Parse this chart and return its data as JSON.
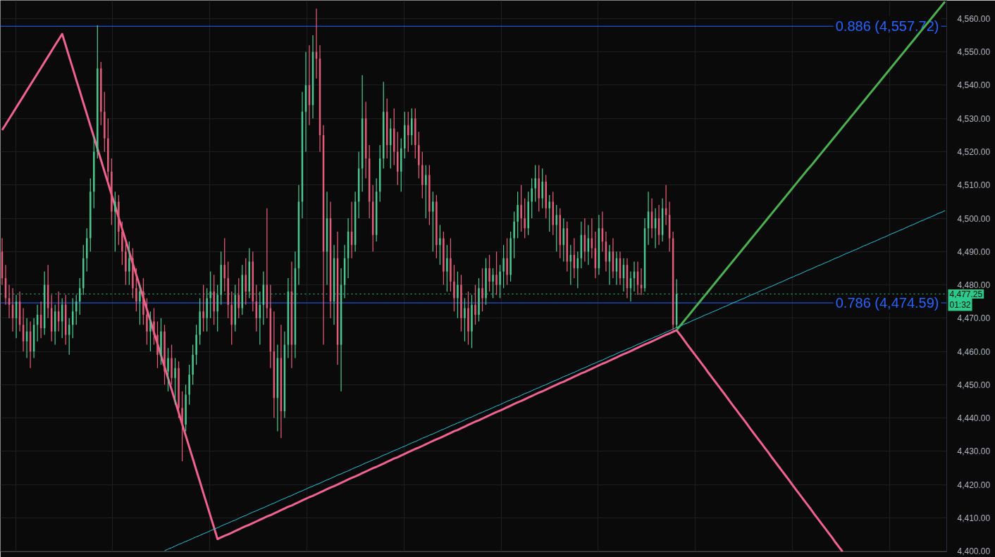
{
  "chart_data": {
    "type": "candlestick",
    "categories": [
      null,
      null,
      null,
      null,
      null,
      null,
      null,
      null,
      null,
      null,
      null,
      null,
      null,
      null,
      null,
      null,
      null,
      null,
      null,
      null,
      null,
      null,
      null,
      null,
      null,
      null,
      null,
      null,
      null,
      null,
      null,
      null,
      null,
      null,
      null,
      null,
      null,
      null,
      null,
      null,
      null,
      null,
      null,
      null,
      null,
      null,
      null,
      null,
      null,
      null,
      null,
      null,
      null,
      null,
      null,
      null,
      null,
      null,
      null,
      null,
      null,
      null,
      null,
      null,
      null,
      null,
      null,
      null,
      null,
      null,
      null,
      null,
      null,
      null,
      null,
      null,
      null,
      null,
      null,
      null,
      null,
      null,
      null,
      null,
      null,
      null,
      null,
      null,
      null,
      null,
      null,
      null,
      null,
      null,
      null,
      null,
      null,
      null,
      null,
      null,
      null,
      null,
      null,
      null,
      null,
      null,
      null,
      null,
      null,
      null,
      null,
      null,
      null,
      null,
      null,
      null,
      null,
      null,
      null,
      null,
      null,
      null,
      null,
      null,
      null,
      null,
      null,
      null,
      null,
      null,
      null,
      null,
      null,
      null,
      null,
      null,
      null,
      null,
      null,
      null,
      null,
      null,
      null,
      null,
      null,
      null,
      null,
      null,
      null,
      null,
      null,
      null,
      null,
      null,
      null,
      null,
      null,
      null,
      null,
      null,
      null,
      null,
      null,
      null,
      null,
      null,
      null,
      null,
      null,
      null,
      null,
      null,
      null,
      null,
      null,
      null,
      null,
      null,
      null,
      null,
      null,
      null,
      null,
      null,
      null,
      null,
      null,
      null,
      null,
      null,
      null,
      null,
      null,
      null,
      null,
      null,
      null,
      null,
      null,
      null,
      null,
      null,
      null,
      null,
      null,
      null,
      null,
      null,
      null,
      null,
      null,
      null,
      null,
      null,
      null,
      null,
      null,
      null,
      null,
      null,
      null,
      null,
      null,
      null,
      null,
      null,
      null,
      null,
      null,
      null,
      null,
      null,
      null,
      null,
      null,
      null,
      null,
      null,
      null,
      null,
      null,
      null,
      null,
      null,
      null,
      null,
      null,
      null,
      null,
      null,
      null,
      null,
      null,
      null,
      null,
      null,
      null,
      null,
      null,
      null,
      null,
      null,
      null,
      null,
      null,
      null,
      null,
      null
    ],
    "ohlc": [
      [
        4490,
        4494,
        4480,
        4482
      ],
      [
        4482,
        4486,
        4474,
        4476
      ],
      [
        4476,
        4480,
        4470,
        4474
      ],
      [
        4474,
        4479,
        4466,
        4470
      ],
      [
        4470,
        4477,
        4464,
        4475
      ],
      [
        4475,
        4478,
        4466,
        4468
      ],
      [
        4468,
        4473,
        4460,
        4463
      ],
      [
        4463,
        4470,
        4458,
        4466
      ],
      [
        4466,
        4469,
        4455,
        4460
      ],
      [
        4460,
        4470,
        4458,
        4468
      ],
      [
        4468,
        4474,
        4463,
        4471
      ],
      [
        4471,
        4475,
        4464,
        4467
      ],
      [
        4467,
        4484,
        4465,
        4480
      ],
      [
        4480,
        4486,
        4470,
        4473
      ],
      [
        4473,
        4477,
        4463,
        4466
      ],
      [
        4466,
        4474,
        4462,
        4472
      ],
      [
        4472,
        4478,
        4466,
        4469
      ],
      [
        4469,
        4476,
        4464,
        4474
      ],
      [
        4474,
        4477,
        4462,
        4465
      ],
      [
        4465,
        4470,
        4459,
        4468
      ],
      [
        4468,
        4476,
        4464,
        4472
      ],
      [
        4472,
        4477,
        4468,
        4475
      ],
      [
        4475,
        4482,
        4471,
        4479
      ],
      [
        4479,
        4492,
        4477,
        4488
      ],
      [
        4488,
        4497,
        4484,
        4494
      ],
      [
        4494,
        4512,
        4490,
        4508
      ],
      [
        4508,
        4525,
        4503,
        4520
      ],
      [
        4520,
        4558,
        4518,
        4545
      ],
      [
        4545,
        4547,
        4528,
        4532
      ],
      [
        4532,
        4538,
        4520,
        4524
      ],
      [
        4524,
        4530,
        4510,
        4514
      ],
      [
        4514,
        4518,
        4498,
        4502
      ],
      [
        4502,
        4508,
        4490,
        4505
      ],
      [
        4505,
        4507,
        4492,
        4496
      ],
      [
        4496,
        4499,
        4486,
        4490
      ],
      [
        4490,
        4494,
        4480,
        4484
      ],
      [
        4484,
        4493,
        4480,
        4488
      ],
      [
        4488,
        4491,
        4476,
        4479
      ],
      [
        4479,
        4485,
        4472,
        4475
      ],
      [
        4475,
        4480,
        4468,
        4478
      ],
      [
        4478,
        4482,
        4468,
        4471
      ],
      [
        4471,
        4476,
        4462,
        4466
      ],
      [
        4466,
        4472,
        4460,
        4469
      ],
      [
        4469,
        4473,
        4462,
        4465
      ],
      [
        4465,
        4469,
        4455,
        4459
      ],
      [
        4459,
        4470,
        4456,
        4466
      ],
      [
        4466,
        4468,
        4450,
        4454
      ],
      [
        4454,
        4461,
        4448,
        4458
      ],
      [
        4458,
        4462,
        4450,
        4452
      ],
      [
        4452,
        4458,
        4444,
        4455
      ],
      [
        4455,
        4457,
        4440,
        4443
      ],
      [
        4443,
        4448,
        4427,
        4438
      ],
      [
        4438,
        4450,
        4436,
        4447
      ],
      [
        4447,
        4456,
        4444,
        4453
      ],
      [
        4453,
        4462,
        4450,
        4459
      ],
      [
        4459,
        4468,
        4456,
        4465
      ],
      [
        4465,
        4476,
        4462,
        4472
      ],
      [
        4472,
        4480,
        4466,
        4470
      ],
      [
        4470,
        4479,
        4466,
        4476
      ],
      [
        4476,
        4484,
        4470,
        4478
      ],
      [
        4478,
        4483,
        4468,
        4472
      ],
      [
        4472,
        4480,
        4466,
        4477
      ],
      [
        4477,
        4490,
        4474,
        4486
      ],
      [
        4486,
        4494,
        4478,
        4482
      ],
      [
        4482,
        4487,
        4470,
        4474
      ],
      [
        4474,
        4478,
        4462,
        4468
      ],
      [
        4468,
        4480,
        4466,
        4477
      ],
      [
        4477,
        4482,
        4470,
        4473
      ],
      [
        4473,
        4486,
        4471,
        4483
      ],
      [
        4483,
        4488,
        4474,
        4478
      ],
      [
        4478,
        4491,
        4476,
        4487
      ],
      [
        4487,
        4490,
        4472,
        4475
      ],
      [
        4475,
        4480,
        4466,
        4470
      ],
      [
        4470,
        4478,
        4462,
        4474
      ],
      [
        4474,
        4484,
        4468,
        4480
      ],
      [
        4480,
        4503,
        4470,
        4473
      ],
      [
        4473,
        4480,
        4455,
        4460
      ],
      [
        4460,
        4472,
        4440,
        4446
      ],
      [
        4446,
        4462,
        4436,
        4458
      ],
      [
        4458,
        4468,
        4434,
        4442
      ],
      [
        4442,
        4466,
        4440,
        4462
      ],
      [
        4462,
        4482,
        4458,
        4478
      ],
      [
        4478,
        4487,
        4455,
        4462
      ],
      [
        4462,
        4490,
        4458,
        4485
      ],
      [
        4485,
        4510,
        4480,
        4505
      ],
      [
        4505,
        4538,
        4500,
        4532
      ],
      [
        4532,
        4550,
        4520,
        4540
      ],
      [
        4540,
        4552,
        4528,
        4534
      ],
      [
        4534,
        4555,
        4530,
        4550
      ],
      [
        4550,
        4563,
        4542,
        4548
      ],
      [
        4548,
        4552,
        4520,
        4525
      ],
      [
        4525,
        4528,
        4462,
        4490
      ],
      [
        4490,
        4508,
        4480,
        4500
      ],
      [
        4500,
        4505,
        4470,
        4475
      ],
      [
        4475,
        4492,
        4468,
        4488
      ],
      [
        4488,
        4496,
        4456,
        4462
      ],
      [
        4462,
        4485,
        4448,
        4480
      ],
      [
        4480,
        4492,
        4476,
        4488
      ],
      [
        4488,
        4500,
        4482,
        4496
      ],
      [
        4496,
        4505,
        4488,
        4492
      ],
      [
        4492,
        4508,
        4490,
        4505
      ],
      [
        4505,
        4520,
        4500,
        4515
      ],
      [
        4515,
        4543,
        4508,
        4530
      ],
      [
        4530,
        4535,
        4512,
        4518
      ],
      [
        4518,
        4522,
        4500,
        4505
      ],
      [
        4505,
        4510,
        4490,
        4495
      ],
      [
        4495,
        4512,
        4493,
        4508
      ],
      [
        4508,
        4522,
        4505,
        4518
      ],
      [
        4518,
        4541,
        4515,
        4532
      ],
      [
        4532,
        4536,
        4518,
        4522
      ],
      [
        4522,
        4530,
        4515,
        4527
      ],
      [
        4527,
        4533,
        4516,
        4520
      ],
      [
        4520,
        4526,
        4510,
        4514
      ],
      [
        4514,
        4524,
        4508,
        4521
      ],
      [
        4521,
        4532,
        4518,
        4528
      ],
      [
        4528,
        4532,
        4520,
        4525
      ],
      [
        4525,
        4533,
        4522,
        4530
      ],
      [
        4530,
        4533,
        4518,
        4522
      ],
      [
        4522,
        4526,
        4512,
        4516
      ],
      [
        4516,
        4520,
        4506,
        4510
      ],
      [
        4510,
        4516,
        4500,
        4513
      ],
      [
        4513,
        4516,
        4498,
        4502
      ],
      [
        4502,
        4508,
        4490,
        4505
      ],
      [
        4505,
        4507,
        4488,
        4492
      ],
      [
        4492,
        4498,
        4486,
        4494
      ],
      [
        4494,
        4496,
        4480,
        4484
      ],
      [
        4484,
        4492,
        4478,
        4488
      ],
      [
        4488,
        4494,
        4478,
        4481
      ],
      [
        4481,
        4486,
        4472,
        4476
      ],
      [
        4476,
        4484,
        4470,
        4480
      ],
      [
        4480,
        4483,
        4466,
        4470
      ],
      [
        4470,
        4476,
        4463,
        4473
      ],
      [
        4473,
        4478,
        4462,
        4466
      ],
      [
        4466,
        4477,
        4461,
        4474
      ],
      [
        4474,
        4480,
        4468,
        4471
      ],
      [
        4471,
        4482,
        4469,
        4479
      ],
      [
        4479,
        4485,
        4472,
        4476
      ],
      [
        4476,
        4488,
        4474,
        4485
      ],
      [
        4485,
        4489,
        4478,
        4481
      ],
      [
        4481,
        4485,
        4476,
        4483
      ],
      [
        4483,
        4490,
        4477,
        4480
      ],
      [
        4480,
        4486,
        4476,
        4484
      ],
      [
        4484,
        4492,
        4479,
        4488
      ],
      [
        4488,
        4494,
        4480,
        4483
      ],
      [
        4483,
        4496,
        4481,
        4494
      ],
      [
        4494,
        4502,
        4488,
        4499
      ],
      [
        4499,
        4508,
        4494,
        4504
      ],
      [
        4504,
        4510,
        4496,
        4500
      ],
      [
        4500,
        4506,
        4494,
        4497
      ],
      [
        4497,
        4508,
        4495,
        4505
      ],
      [
        4505,
        4512,
        4500,
        4509
      ],
      [
        4509,
        4516,
        4505,
        4512
      ],
      [
        4512,
        4516,
        4502,
        4506
      ],
      [
        4506,
        4515,
        4503,
        4511
      ],
      [
        4511,
        4513,
        4500,
        4503
      ],
      [
        4503,
        4507,
        4496,
        4505
      ],
      [
        4505,
        4508,
        4495,
        4498
      ],
      [
        4498,
        4504,
        4490,
        4501
      ],
      [
        4501,
        4503,
        4488,
        4492
      ],
      [
        4492,
        4500,
        4487,
        4497
      ],
      [
        4497,
        4499,
        4484,
        4487
      ],
      [
        4487,
        4492,
        4480,
        4489
      ],
      [
        4489,
        4494,
        4482,
        4485
      ],
      [
        4485,
        4490,
        4479,
        4488
      ],
      [
        4488,
        4499,
        4485,
        4495
      ],
      [
        4495,
        4500,
        4487,
        4490
      ],
      [
        4490,
        4498,
        4486,
        4494
      ],
      [
        4494,
        4500,
        4488,
        4491
      ],
      [
        4491,
        4496,
        4482,
        4485
      ],
      [
        4485,
        4501,
        4483,
        4497
      ],
      [
        4497,
        4502,
        4490,
        4493
      ],
      [
        4493,
        4496,
        4484,
        4487
      ],
      [
        4487,
        4492,
        4480,
        4490
      ],
      [
        4490,
        4494,
        4482,
        4484
      ],
      [
        4484,
        4490,
        4480,
        4488
      ],
      [
        4488,
        4490,
        4480,
        4482
      ],
      [
        4482,
        4488,
        4478,
        4486
      ],
      [
        4486,
        4488,
        4476,
        4479
      ],
      [
        4479,
        4484,
        4475,
        4482
      ],
      [
        4482,
        4487,
        4478,
        4484
      ],
      [
        4484,
        4487,
        4477,
        4480
      ],
      [
        4480,
        4485,
        4477,
        4479
      ],
      [
        4479,
        4500,
        4478,
        4497
      ],
      [
        4497,
        4508,
        4492,
        4502
      ],
      [
        4502,
        4506,
        4494,
        4497
      ],
      [
        4497,
        4503,
        4491,
        4500
      ],
      [
        4500,
        4504,
        4492,
        4495
      ],
      [
        4495,
        4506,
        4493,
        4503
      ],
      [
        4503,
        4510,
        4498,
        4501
      ],
      [
        4501,
        4505,
        4490,
        4494
      ],
      [
        4494,
        4496,
        4466.4,
        4468
      ],
      [
        4468,
        4481.7,
        4467,
        4477.25
      ],
      null,
      null,
      null,
      null,
      null,
      null,
      null,
      null,
      null,
      null,
      null,
      null,
      null,
      null,
      null,
      null,
      null,
      null,
      null,
      null,
      null,
      null,
      null,
      null,
      null,
      null,
      null,
      null,
      null,
      null,
      null,
      null,
      null,
      null,
      null,
      null,
      null,
      null,
      null,
      null,
      null,
      null,
      null,
      null,
      null,
      null,
      null,
      null,
      null,
      null,
      null,
      null,
      null,
      null,
      null,
      null,
      null,
      null,
      null,
      null,
      null,
      null,
      null,
      null,
      null,
      null,
      null,
      null,
      null,
      null,
      null,
      null,
      null,
      null,
      null,
      null
    ],
    "colors": [
      "#e45d78",
      "#e45d78",
      "#e45d78",
      "#e45d78",
      "#4cc790",
      "#e45d78",
      "#e45d78",
      "#4cc790",
      "#e45d78",
      "#4cc790",
      "#4cc790",
      "#e45d78",
      "#4cc790",
      "#e45d78",
      "#e45d78",
      "#4cc790",
      "#e45d78",
      "#4cc790",
      "#e45d78",
      "#4cc790",
      "#4cc790",
      "#4cc790",
      "#4cc790",
      "#4cc790",
      "#4cc790",
      "#4cc790",
      "#4cc790",
      "#4cc790",
      "#e45d78",
      "#e45d78",
      "#e45d78",
      "#e45d78",
      "#4cc790",
      "#e45d78",
      "#e45d78",
      "#e45d78",
      "#4cc790",
      "#e45d78",
      "#e45d78",
      "#4cc790",
      "#e45d78",
      "#e45d78",
      "#4cc790",
      "#e45d78",
      "#e45d78",
      "#4cc790",
      "#e45d78",
      "#4cc790",
      "#e45d78",
      "#4cc790",
      "#e45d78",
      "#e45d78",
      "#4cc790",
      "#4cc790",
      "#4cc790",
      "#4cc790",
      "#4cc790",
      "#e45d78",
      "#4cc790",
      "#4cc790",
      "#e45d78",
      "#4cc790",
      "#4cc790",
      "#e45d78",
      "#e45d78",
      "#e45d78",
      "#4cc790",
      "#e45d78",
      "#4cc790",
      "#e45d78",
      "#4cc790",
      "#e45d78",
      "#e45d78",
      "#4cc790",
      "#4cc790",
      "#e45d78",
      "#e45d78",
      "#e45d78",
      "#4cc790",
      "#e45d78",
      "#4cc790",
      "#4cc790",
      "#e45d78",
      "#4cc790",
      "#4cc790",
      "#4cc790",
      "#4cc790",
      "#e45d78",
      "#4cc790",
      "#e45d78",
      "#e45d78",
      "#e45d78",
      "#4cc790",
      "#e45d78",
      "#4cc790",
      "#e45d78",
      "#4cc790",
      "#4cc790",
      "#4cc790",
      "#e45d78",
      "#4cc790",
      "#4cc790",
      "#4cc790",
      "#e45d78",
      "#e45d78",
      "#e45d78",
      "#4cc790",
      "#4cc790",
      "#4cc790",
      "#e45d78",
      "#4cc790",
      "#e45d78",
      "#e45d78",
      "#4cc790",
      "#4cc790",
      "#e45d78",
      "#4cc790",
      "#e45d78",
      "#e45d78",
      "#e45d78",
      "#4cc790",
      "#e45d78",
      "#4cc790",
      "#e45d78",
      "#4cc790",
      "#e45d78",
      "#4cc790",
      "#e45d78",
      "#e45d78",
      "#4cc790",
      "#e45d78",
      "#4cc790",
      "#e45d78",
      "#4cc790",
      "#e45d78",
      "#4cc790",
      "#e45d78",
      "#4cc790",
      "#e45d78",
      "#4cc790",
      "#e45d78",
      "#4cc790",
      "#4cc790",
      "#e45d78",
      "#4cc790",
      "#4cc790",
      "#4cc790",
      "#e45d78",
      "#e45d78",
      "#4cc790",
      "#4cc790",
      "#4cc790",
      "#e45d78",
      "#4cc790",
      "#e45d78",
      "#4cc790",
      "#e45d78",
      "#4cc790",
      "#e45d78",
      "#4cc790",
      "#e45d78",
      "#4cc790",
      "#e45d78",
      "#4cc790",
      "#4cc790",
      "#e45d78",
      "#4cc790",
      "#e45d78",
      "#e45d78",
      "#4cc790",
      "#e45d78",
      "#e45d78",
      "#4cc790",
      "#e45d78",
      "#4cc790",
      "#e45d78",
      "#4cc790",
      "#e45d78",
      "#4cc790",
      "#4cc790",
      "#e45d78",
      "#e45d78",
      "#4cc790",
      "#4cc790",
      "#e45d78",
      "#4cc790",
      "#e45d78",
      "#4cc790",
      "#e45d78",
      "#e45d78",
      "#e45d78",
      "#4cc790",
      null,
      null,
      null,
      null,
      null,
      null,
      null,
      null,
      null,
      null,
      null,
      null,
      null,
      null,
      null,
      null,
      null,
      null,
      null,
      null,
      null,
      null,
      null,
      null,
      null,
      null,
      null,
      null,
      null,
      null,
      null,
      null,
      null,
      null,
      null,
      null,
      null,
      null,
      null,
      null,
      null,
      null,
      null,
      null,
      null,
      null,
      null,
      null,
      null,
      null,
      null,
      null,
      null,
      null,
      null,
      null,
      null,
      null,
      null,
      null,
      null,
      null,
      null,
      null,
      null,
      null,
      null,
      null,
      null,
      null,
      null,
      null,
      null,
      null,
      null,
      null
    ],
    "series": [
      {
        "type": "line",
        "color": "#f06292",
        "values": [
          4526.5,
          4528.2,
          4529.9,
          4531.6,
          4533.3,
          4535.0,
          4536.7,
          4538.4,
          4540.1,
          4541.8,
          4543.5,
          4545.2,
          4546.9,
          4548.6,
          4550.3,
          4552.0,
          4553.7,
          4555.4,
          4552.0,
          4548.5,
          4545.1,
          4541.6,
          4538.2,
          4534.7,
          4531.3,
          4527.8,
          4524.4,
          4520.9,
          4517.5,
          4514.0,
          4510.6,
          4507.1,
          4503.7,
          4500.2,
          4496.8,
          4493.3,
          4489.9,
          4486.4,
          4483.0,
          4479.5,
          4476.1,
          4472.6,
          4469.2,
          4465.7,
          4462.3,
          4458.8,
          4455.4,
          4451.9,
          4448.5,
          4445.0,
          4441.6,
          4438.1,
          4434.7,
          4431.2,
          4427.8,
          4424.3,
          4420.9,
          4417.4,
          4414.0,
          4410.5,
          4407.1,
          4403.6,
          4404.1,
          4404.6,
          4405.0,
          4405.5,
          4406.0,
          4406.5,
          4407.0,
          4407.5,
          4407.9,
          4408.4,
          4408.9,
          4409.4,
          4409.9,
          4410.4,
          4410.8,
          4411.3,
          4411.8,
          4412.3,
          4412.8,
          4413.3,
          4413.7,
          4414.2,
          4414.7,
          4415.2,
          4415.7,
          4416.2,
          4416.6,
          4417.1,
          4417.6,
          4418.1,
          4418.6,
          4419.1,
          4419.5,
          4420.0,
          4420.5,
          4421.0,
          4421.5,
          4422.0,
          4422.4,
          4422.9,
          4423.4,
          4423.9,
          4424.4,
          4424.9,
          4425.3,
          4425.8,
          4426.3,
          4426.8,
          4427.3,
          4427.8,
          4428.2,
          4428.7,
          4429.2,
          4429.7,
          4430.2,
          4430.7,
          4431.1,
          4431.6,
          4432.1,
          4432.6,
          4433.1,
          4433.6,
          4434.0,
          4434.5,
          4435.0,
          4435.5,
          4436.0,
          4436.4,
          4436.9,
          4437.4,
          4437.9,
          4438.4,
          4438.9,
          4439.3,
          4439.8,
          4440.3,
          4440.8,
          4441.3,
          4441.8,
          4442.2,
          4442.7,
          4443.2,
          4443.7,
          4444.2,
          4444.7,
          4445.1,
          4445.6,
          4446.1,
          4446.6,
          4447.1,
          4447.6,
          4448.0,
          4448.5,
          4449.0,
          4449.5,
          4450.0,
          4450.5,
          4450.9,
          4451.4,
          4451.9,
          4452.4,
          4452.9,
          4453.4,
          4453.8,
          4454.3,
          4454.8,
          4455.3,
          4455.8,
          4456.3,
          4456.7,
          4457.2,
          4457.7,
          4458.2,
          4458.7,
          4459.2,
          4459.6,
          4460.1,
          4460.6,
          4461.1,
          4461.6,
          4462.1,
          4462.5,
          4463.0,
          4463.5,
          4464.0,
          4464.5,
          4465.0,
          4465.4,
          4465.9,
          4466.4,
          4465.0,
          4463.6,
          4462.1,
          4460.7,
          4459.3,
          4457.9,
          4456.5,
          4455.1,
          4453.6,
          4452.2,
          4450.8,
          4449.4,
          4448.0,
          4446.6,
          4445.1,
          4443.7,
          4442.3,
          4440.9,
          4439.5,
          4438.1,
          4436.6,
          4435.2,
          4433.8,
          4432.4,
          4431.0,
          4429.6,
          4428.1,
          4426.7,
          4425.3,
          4423.9,
          4422.5,
          4421.1,
          4419.6,
          4418.2,
          4416.8,
          4415.4,
          4414.0,
          4412.6,
          4411.1,
          4409.7,
          4408.3,
          4406.9,
          4405.5,
          4404.1,
          4402.6,
          4401.2,
          4399.8,
          null,
          null,
          null,
          null,
          null,
          null,
          null,
          null,
          null,
          null,
          null,
          null,
          null,
          null,
          null,
          null,
          null,
          null,
          null,
          null,
          null,
          null,
          null,
          null,
          null,
          null,
          null,
          null,
          null
        ]
      },
      {
        "type": "line",
        "color": "#4caf50",
        "values": [
          null,
          null,
          null,
          null,
          null,
          null,
          null,
          null,
          null,
          null,
          null,
          null,
          null,
          null,
          null,
          null,
          null,
          null,
          null,
          null,
          null,
          null,
          null,
          null,
          null,
          null,
          null,
          null,
          null,
          null,
          null,
          null,
          null,
          null,
          null,
          null,
          null,
          null,
          null,
          null,
          null,
          null,
          null,
          null,
          null,
          null,
          null,
          null,
          null,
          null,
          null,
          null,
          null,
          null,
          null,
          null,
          null,
          null,
          null,
          null,
          null,
          null,
          null,
          null,
          null,
          null,
          null,
          null,
          null,
          null,
          null,
          null,
          null,
          null,
          null,
          null,
          null,
          null,
          null,
          null,
          null,
          null,
          null,
          null,
          null,
          null,
          null,
          null,
          null,
          null,
          null,
          null,
          null,
          null,
          null,
          null,
          null,
          null,
          null,
          null,
          null,
          null,
          null,
          null,
          null,
          null,
          null,
          null,
          null,
          null,
          null,
          null,
          null,
          null,
          null,
          null,
          null,
          null,
          null,
          null,
          null,
          null,
          null,
          null,
          null,
          null,
          null,
          null,
          null,
          null,
          null,
          null,
          null,
          null,
          null,
          null,
          null,
          null,
          null,
          null,
          null,
          null,
          null,
          null,
          null,
          null,
          null,
          null,
          null,
          null,
          null,
          null,
          null,
          null,
          null,
          null,
          null,
          null,
          null,
          null,
          null,
          null,
          null,
          null,
          null,
          null,
          null,
          null,
          null,
          null,
          null,
          null,
          null,
          null,
          null,
          null,
          null,
          null,
          null,
          null,
          null,
          null,
          null,
          null,
          null,
          null,
          null,
          null,
          null,
          null,
          null,
          4466.4,
          4467.7,
          4469.0,
          4470.3,
          4471.6,
          4472.9,
          4474.2,
          4475.5,
          4476.8,
          4478.1,
          4479.4,
          4480.7,
          4482.0,
          4483.3,
          4484.6,
          4485.9,
          4487.2,
          4488.5,
          4489.8,
          4491.1,
          4492.4,
          4493.7,
          4495.0,
          4496.3,
          4497.6,
          4498.9,
          4500.2,
          4501.5,
          4502.8,
          4504.1,
          4505.4,
          4506.7,
          4508.0,
          4509.3,
          4510.6,
          4511.9,
          4513.2,
          4514.5,
          4515.7,
          4517.0,
          4518.3,
          4519.6,
          4520.9,
          4522.2,
          4523.5,
          4524.8,
          4526.1,
          4527.4,
          4528.7,
          4530.0,
          4531.3,
          4532.6,
          4533.9,
          4535.2,
          4536.5,
          4537.8,
          4539.1,
          4540.4,
          4541.7,
          4543.0,
          4544.3,
          4545.6,
          4546.9,
          4548.2,
          4549.5,
          4550.8,
          4552.1,
          4553.4,
          4554.7,
          4556.0,
          4557.3,
          4558.6,
          4559.9,
          4561.2,
          4562.5,
          4563.8,
          4565.1
        ]
      },
      {
        "type": "line",
        "color": "#26c6da",
        "values": [
          null,
          null,
          null,
          null,
          null,
          null,
          null,
          null,
          null,
          null,
          null,
          null,
          null,
          null,
          null,
          null,
          null,
          null,
          null,
          null,
          null,
          null,
          null,
          null,
          null,
          null,
          null,
          null,
          null,
          null,
          null,
          null,
          null,
          null,
          null,
          null,
          null,
          null,
          null,
          null,
          null,
          null,
          null,
          null,
          null,
          null,
          4400.1,
          4400.6,
          4401.0,
          4401.5,
          4402.0,
          4402.4,
          4402.9,
          4403.3,
          4403.8,
          4404.3,
          4404.7,
          4405.2,
          4405.6,
          4406.1,
          4406.6,
          4407.0,
          4407.5,
          4408.0,
          4408.4,
          4408.9,
          4409.3,
          4409.8,
          4410.3,
          4410.7,
          4411.2,
          4411.7,
          4412.1,
          4412.6,
          4413.0,
          4413.5,
          4414.0,
          4414.4,
          4414.9,
          4415.4,
          4415.8,
          4416.3,
          4416.7,
          4417.2,
          4417.7,
          4418.1,
          4418.6,
          4419.1,
          4419.5,
          4420.0,
          4420.4,
          4420.9,
          4421.4,
          4421.8,
          4422.3,
          4422.8,
          4423.2,
          4423.7,
          4424.1,
          4424.6,
          4425.1,
          4425.5,
          4426.0,
          4426.5,
          4426.9,
          4427.4,
          4427.8,
          4428.3,
          4428.8,
          4429.2,
          4429.7,
          4430.2,
          4430.6,
          4431.1,
          4431.5,
          4432.0,
          4432.5,
          4432.9,
          4433.4,
          4433.9,
          4434.3,
          4434.8,
          4435.2,
          4435.7,
          4436.2,
          4436.6,
          4437.1,
          4437.6,
          4438.0,
          4438.5,
          4438.9,
          4439.4,
          4439.9,
          4440.3,
          4440.8,
          4441.3,
          4441.7,
          4442.2,
          4442.6,
          4443.1,
          4443.6,
          4444.0,
          4444.5,
          4445.0,
          4445.4,
          4445.9,
          4446.3,
          4446.8,
          4447.3,
          4447.7,
          4448.2,
          4448.7,
          4449.1,
          4449.6,
          4450.0,
          4450.5,
          4451.0,
          4451.4,
          4451.9,
          4452.4,
          4452.8,
          4453.3,
          4453.7,
          4454.2,
          4454.7,
          4455.1,
          4455.6,
          4456.1,
          4456.5,
          4457.0,
          4457.4,
          4457.9,
          4458.4,
          4458.8,
          4459.3,
          4459.8,
          4460.2,
          4460.7,
          4461.1,
          4461.6,
          4462.1,
          4462.5,
          4463.0,
          4463.5,
          4463.9,
          4464.4,
          4464.8,
          4465.3,
          4465.8,
          4466.2,
          4466.7,
          4467.2,
          4467.6,
          4468.1,
          4468.5,
          4469.0,
          4469.5,
          4469.9,
          4470.4,
          4470.9,
          4471.3,
          4471.8,
          4472.2,
          4472.7,
          4473.2,
          4473.6,
          4474.1,
          4474.6,
          4475.0,
          4475.5,
          4475.9,
          4476.4,
          4476.9,
          4477.3,
          4477.8,
          4478.3,
          4478.7,
          4479.2,
          4479.6,
          4480.1,
          4480.6,
          4481.0,
          4481.5,
          4482.0,
          4482.4,
          4482.9,
          4483.3,
          4483.8,
          4484.3,
          4484.7,
          4485.2,
          4485.7,
          4486.1,
          4486.6,
          4487.0,
          4487.5,
          4488.0,
          4488.4,
          4488.9,
          4489.4,
          4489.8,
          4490.3,
          4490.7,
          4491.2,
          4491.7,
          4492.1,
          4492.6,
          4493.0,
          4493.5,
          4494.0,
          4494.4,
          4494.9,
          4495.4,
          4495.8,
          4496.3,
          4496.7,
          4497.2,
          4497.7,
          4498.1,
          4498.6,
          4499.1,
          4499.5,
          4500.0,
          4500.4,
          4500.9,
          4501.4,
          4501.8,
          4502.3
        ]
      }
    ],
    "ylim": [
      4399.8,
      4565.5
    ],
    "yticks": [
      {
        "value": 4400,
        "label": "4,400.00"
      },
      {
        "value": 4410,
        "label": "4,410.00"
      },
      {
        "value": 4420,
        "label": "4,420.00"
      },
      {
        "value": 4430,
        "label": "4,430.00"
      },
      {
        "value": 4440,
        "label": "4,440.00"
      },
      {
        "value": 4450,
        "label": "4,450.00"
      },
      {
        "value": 4460,
        "label": "4,460.00"
      },
      {
        "value": 4470,
        "label": "4,470.00"
      },
      {
        "value": 4480,
        "label": "4,480.00"
      },
      {
        "value": 4490,
        "label": "4,490.00"
      },
      {
        "value": 4500,
        "label": "4,500.00"
      },
      {
        "value": 4510,
        "label": "4,510.00"
      },
      {
        "value": 4520,
        "label": "4,520.00"
      },
      {
        "value": 4530,
        "label": "4,530.00"
      },
      {
        "value": 4540,
        "label": "4,540.00"
      },
      {
        "value": 4550,
        "label": "4,550.00"
      },
      {
        "value": 4560,
        "label": "4,560.00"
      }
    ],
    "ref_lines": [
      {
        "axis": "y",
        "value": 4557.72,
        "label": "0.886 (4,557.72)",
        "color": "#2962ff"
      },
      {
        "axis": "y",
        "value": 4474.59,
        "label": "0.786 (4,474.59)",
        "color": "#2962ff"
      },
      {
        "axis": "y",
        "value": 4477.25,
        "label": "4,477.25",
        "color": "#2dc98a",
        "line_style": "dotted"
      }
    ],
    "annotations": [
      "01:32"
    ],
    "grid": true,
    "tick_labels": "y"
  }
}
